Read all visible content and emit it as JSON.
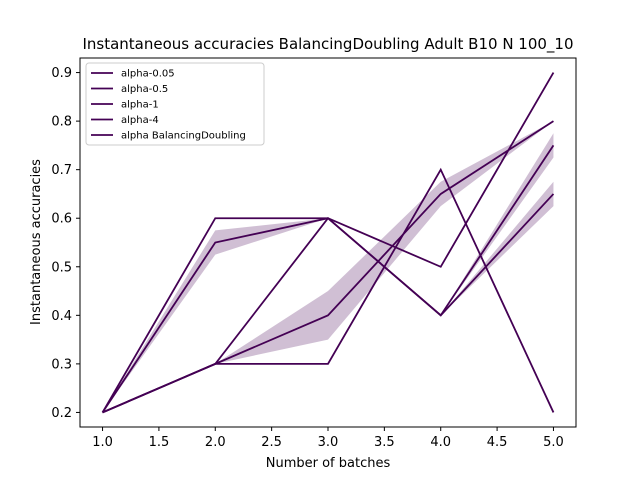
{
  "chart_data": {
    "type": "line",
    "title": "Instantaneous accuracies BalancingDoubling Adult B10 N 100_10",
    "xlabel": "Number of batches",
    "ylabel": "Instantaneous accuracies",
    "xlim": [
      0.8,
      5.2
    ],
    "ylim": [
      0.17,
      0.93
    ],
    "xticks": [
      1.0,
      1.5,
      2.0,
      2.5,
      3.0,
      3.5,
      4.0,
      4.5,
      5.0
    ],
    "xtick_labels": [
      "1.0",
      "1.5",
      "2.0",
      "2.5",
      "3.0",
      "3.5",
      "4.0",
      "4.5",
      "5.0"
    ],
    "yticks": [
      0.2,
      0.3,
      0.4,
      0.5,
      0.6,
      0.7,
      0.8,
      0.9
    ],
    "ytick_labels": [
      "0.2",
      "0.3",
      "0.4",
      "0.5",
      "0.6",
      "0.7",
      "0.8",
      "0.9"
    ],
    "line_color": "#440154",
    "band_color": "#440154",
    "grid": false,
    "legend_position": "top-left",
    "x": [
      1,
      2,
      3,
      4,
      5
    ],
    "series": [
      {
        "name": "alpha-0.05",
        "values": [
          0.2,
          0.3,
          0.4,
          0.65,
          0.8
        ],
        "band": [
          [
            0.2,
            0.2
          ],
          [
            0.3,
            0.3
          ],
          [
            0.35,
            0.45
          ],
          [
            0.625,
            0.675
          ],
          [
            0.8,
            0.8
          ]
        ]
      },
      {
        "name": "alpha-0.5",
        "values": [
          0.2,
          0.55,
          0.6,
          0.4,
          0.65
        ],
        "band": [
          [
            0.2,
            0.2
          ],
          [
            0.525,
            0.575
          ],
          [
            0.6,
            0.6
          ],
          [
            0.4,
            0.4
          ],
          [
            0.625,
            0.675
          ]
        ]
      },
      {
        "name": "alpha-1",
        "values": [
          0.2,
          0.6,
          0.6,
          0.4,
          0.75
        ],
        "band": [
          [
            0.2,
            0.2
          ],
          [
            0.6,
            0.6
          ],
          [
            0.6,
            0.6
          ],
          [
            0.4,
            0.4
          ],
          [
            0.725,
            0.775
          ]
        ]
      },
      {
        "name": "alpha-4",
        "values": [
          0.2,
          0.3,
          0.6,
          0.5,
          0.9
        ]
      },
      {
        "name": "alpha BalancingDoubling",
        "values": [
          0.2,
          0.3,
          0.3,
          0.7,
          0.2
        ]
      }
    ]
  }
}
